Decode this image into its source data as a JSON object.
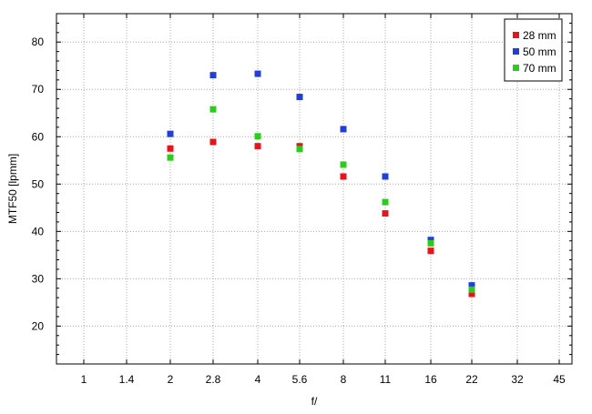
{
  "chart_data": {
    "type": "scatter",
    "title": "",
    "xlabel": "f/",
    "ylabel": "MTF50 [lpmm]",
    "x_ticks": [
      "1",
      "1.4",
      "2",
      "2.8",
      "4",
      "5.6",
      "8",
      "11",
      "16",
      "22",
      "32",
      "45"
    ],
    "ylim": [
      12,
      86
    ],
    "y_ticks": [
      20,
      30,
      40,
      50,
      60,
      70,
      80
    ],
    "grid": true,
    "legend_position": "top-right",
    "series": [
      {
        "name": "28 mm",
        "color": "#e8141b",
        "points": [
          {
            "x": "2",
            "y": 57.5
          },
          {
            "x": "2.8",
            "y": 58.9
          },
          {
            "x": "4",
            "y": 58.0
          },
          {
            "x": "5.6",
            "y": 58.0
          },
          {
            "x": "8",
            "y": 51.6
          },
          {
            "x": "11",
            "y": 43.8
          },
          {
            "x": "16",
            "y": 35.9
          },
          {
            "x": "22",
            "y": 26.8
          }
        ]
      },
      {
        "name": "50 mm",
        "color": "#1f3fd6",
        "points": [
          {
            "x": "2",
            "y": 60.6
          },
          {
            "x": "2.8",
            "y": 73.0
          },
          {
            "x": "4",
            "y": 73.3
          },
          {
            "x": "5.6",
            "y": 68.4
          },
          {
            "x": "8",
            "y": 61.6
          },
          {
            "x": "11",
            "y": 51.6
          },
          {
            "x": "16",
            "y": 38.2
          },
          {
            "x": "22",
            "y": 28.6
          }
        ]
      },
      {
        "name": "70 mm",
        "color": "#2ccc1f",
        "points": [
          {
            "x": "2",
            "y": 55.6
          },
          {
            "x": "2.8",
            "y": 65.8
          },
          {
            "x": "4",
            "y": 60.1
          },
          {
            "x": "5.6",
            "y": 57.4
          },
          {
            "x": "8",
            "y": 54.1
          },
          {
            "x": "11",
            "y": 46.2
          },
          {
            "x": "16",
            "y": 37.5
          },
          {
            "x": "22",
            "y": 27.7
          }
        ]
      }
    ]
  }
}
